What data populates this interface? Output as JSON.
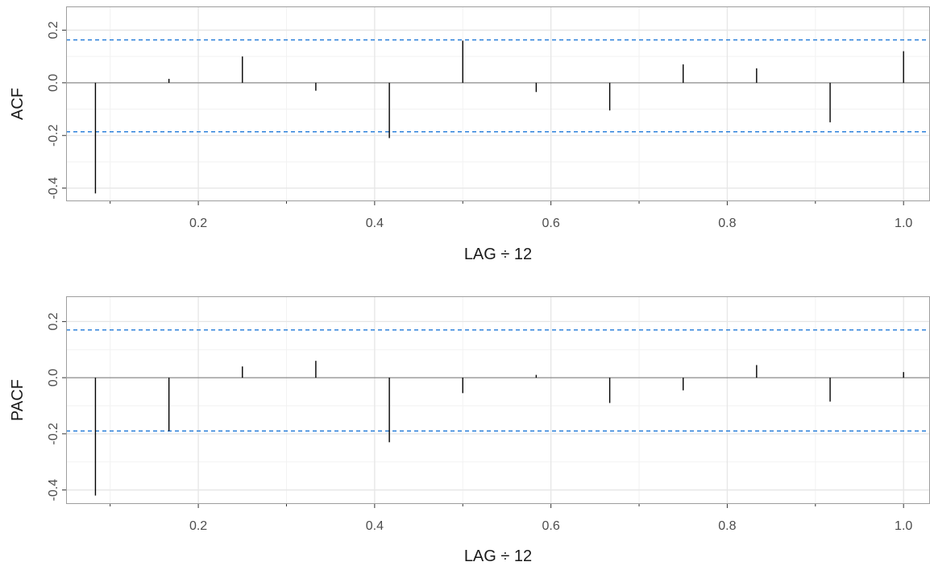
{
  "chart_data": [
    {
      "type": "bar",
      "ylabel": "ACF",
      "xlabel": "LAG ÷ 12",
      "xlim": [
        0.05,
        1.03
      ],
      "ylim": [
        -0.45,
        0.29
      ],
      "x_ticks": [
        0.2,
        0.4,
        0.6,
        0.8,
        1.0
      ],
      "x_tick_labels": [
        "0.2",
        "0.4",
        "0.6",
        "0.8",
        "1.0"
      ],
      "y_ticks": [
        -0.4,
        -0.2,
        0.0,
        0.2
      ],
      "y_tick_labels": [
        "-0.4",
        "-0.2",
        "0.0",
        "0.2"
      ],
      "x": [
        0.0833,
        0.1667,
        0.25,
        0.3333,
        0.4167,
        0.5,
        0.5833,
        0.6667,
        0.75,
        0.8333,
        0.9167,
        1.0
      ],
      "values": [
        -0.42,
        0.015,
        0.1,
        -0.03,
        -0.21,
        0.16,
        -0.035,
        -0.105,
        0.07,
        0.055,
        -0.15,
        0.12
      ],
      "confidence_limits": [
        0.163,
        -0.186
      ],
      "bar_color": "#000000",
      "ci_color": "#1e78d8",
      "grid": true
    },
    {
      "type": "bar",
      "ylabel": "PACF",
      "xlabel": "LAG ÷ 12",
      "xlim": [
        0.05,
        1.03
      ],
      "ylim": [
        -0.45,
        0.29
      ],
      "x_ticks": [
        0.2,
        0.4,
        0.6,
        0.8,
        1.0
      ],
      "x_tick_labels": [
        "0.2",
        "0.4",
        "0.6",
        "0.8",
        "1.0"
      ],
      "y_ticks": [
        -0.4,
        -0.2,
        0.0,
        0.2
      ],
      "y_tick_labels": [
        "-0.4",
        "-0.2",
        "0.0",
        "0.2"
      ],
      "x": [
        0.0833,
        0.1667,
        0.25,
        0.3333,
        0.4167,
        0.5,
        0.5833,
        0.6667,
        0.75,
        0.8333,
        0.9167,
        1.0
      ],
      "values": [
        -0.42,
        -0.19,
        0.04,
        0.06,
        -0.23,
        -0.055,
        0.01,
        -0.09,
        -0.045,
        0.045,
        -0.085,
        0.02
      ],
      "confidence_limits": [
        0.17,
        -0.19
      ],
      "bar_color": "#000000",
      "ci_color": "#1e78d8",
      "grid": true
    }
  ]
}
